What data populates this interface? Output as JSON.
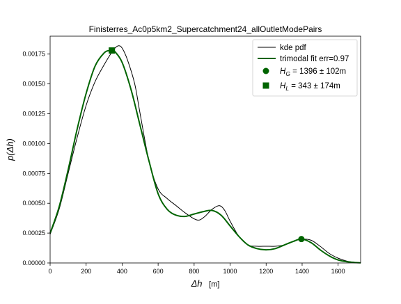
{
  "chart_data": {
    "type": "line",
    "title": "Finisterres_Ac0p5km2_Supercatchment24_allOutletModePairs",
    "xlabel_italic": "Δh",
    "xlabel_unit": "[m]",
    "ylabel": "p(Δh)",
    "xlim": [
      0,
      1725
    ],
    "ylim": [
      0,
      0.0019
    ],
    "xticks": [
      {
        "value": 0,
        "label": "0"
      },
      {
        "value": 200,
        "label": "200"
      },
      {
        "value": 400,
        "label": "400"
      },
      {
        "value": 600,
        "label": "600"
      },
      {
        "value": 800,
        "label": "800"
      },
      {
        "value": 1000,
        "label": "1000"
      },
      {
        "value": 1200,
        "label": "1200"
      },
      {
        "value": 1400,
        "label": "1400"
      },
      {
        "value": 1600,
        "label": "1600"
      }
    ],
    "yticks": [
      {
        "value": 0,
        "label": "0.00000"
      },
      {
        "value": 0.00025,
        "label": "0.00025"
      },
      {
        "value": 0.0005,
        "label": "0.00050"
      },
      {
        "value": 0.00075,
        "label": "0.00075"
      },
      {
        "value": 0.001,
        "label": "0.00100"
      },
      {
        "value": 0.00125,
        "label": "0.00125"
      },
      {
        "value": 0.0015,
        "label": "0.00150"
      },
      {
        "value": 0.00175,
        "label": "0.00175"
      }
    ],
    "grid": false,
    "legend_position": "top-right",
    "series": [
      {
        "name": "kde pdf",
        "color": "#000000",
        "x": [
          0,
          50,
          100,
          150,
          200,
          250,
          300,
          340,
          360,
          380,
          400,
          430,
          470,
          500,
          550,
          600,
          650,
          700,
          750,
          800,
          830,
          860,
          900,
          940,
          970,
          1000,
          1050,
          1100,
          1150,
          1200,
          1250,
          1300,
          1350,
          1400,
          1450,
          1500,
          1550,
          1600,
          1650,
          1700,
          1725
        ],
        "y": [
          0.00024,
          0.00045,
          0.00075,
          0.00105,
          0.00132,
          0.00152,
          0.00166,
          0.00176,
          0.0018,
          0.00182,
          0.0018,
          0.0017,
          0.0015,
          0.00125,
          0.00085,
          0.00062,
          0.00054,
          0.00048,
          0.00042,
          0.00037,
          0.00036,
          0.00039,
          0.00045,
          0.00048,
          0.00044,
          0.00035,
          0.00022,
          0.00015,
          0.00014,
          0.00014,
          0.00014,
          0.00015,
          0.00018,
          0.0002,
          0.00019,
          0.00014,
          8e-05,
          4e-05,
          1.5e-05,
          4e-06,
          2e-06
        ]
      },
      {
        "name": "trimodal fit err=0.97",
        "color": "#006400",
        "x": [
          0,
          50,
          100,
          150,
          200,
          250,
          300,
          330,
          345,
          360,
          400,
          450,
          500,
          550,
          600,
          650,
          700,
          750,
          800,
          850,
          900,
          950,
          1000,
          1050,
          1100,
          1150,
          1200,
          1250,
          1300,
          1350,
          1396,
          1450,
          1500,
          1550,
          1600,
          1650,
          1700,
          1725
        ],
        "y": [
          0.00025,
          0.00047,
          0.00078,
          0.00112,
          0.00142,
          0.00165,
          0.00176,
          0.00178,
          0.00178,
          0.00177,
          0.00168,
          0.00145,
          0.00115,
          0.00085,
          0.00058,
          0.00045,
          0.0004,
          0.00039,
          0.00041,
          0.00043,
          0.00044,
          0.0004,
          0.00031,
          0.00022,
          0.00015,
          0.00012,
          0.00011,
          0.00012,
          0.00015,
          0.00018,
          0.0002,
          0.00017,
          0.00011,
          6e-05,
          2.5e-05,
          1e-05,
          3e-06,
          1e-06
        ]
      }
    ],
    "markers": [
      {
        "shape": "circle",
        "x": 1396,
        "y": 0.0002,
        "color": "#006400",
        "legend_label": "H_G = 1396 ± 102m",
        "sym": "H",
        "sub": "G",
        "rest": " = 1396 ± 102m"
      },
      {
        "shape": "square",
        "x": 343,
        "y": 0.00178,
        "color": "#006400",
        "legend_label": "H_L = 343 ± 174m",
        "sym": "H",
        "sub": "L",
        "rest": " = 343 ± 174m"
      }
    ]
  }
}
